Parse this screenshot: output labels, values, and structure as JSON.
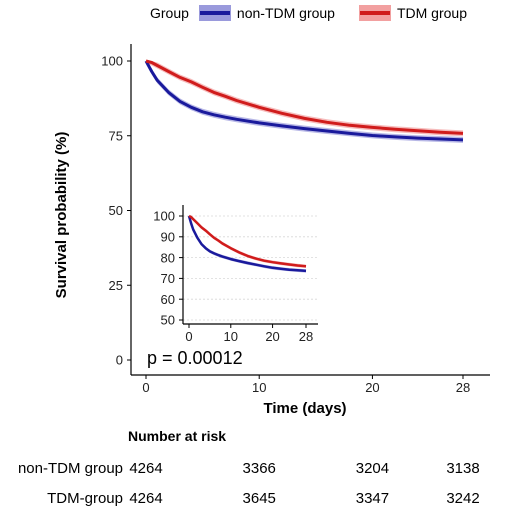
{
  "legend": {
    "title": "Group",
    "items": [
      {
        "label": "non-TDM group",
        "color": "#1a1a9c",
        "band_color": "#9a9adc"
      },
      {
        "label": "TDM group",
        "color": "#d01c1c",
        "band_color": "#f2a0a0"
      }
    ]
  },
  "chart_data": [
    {
      "type": "line",
      "xlabel": "Time (days)",
      "ylabel": "Survival probability (%)",
      "xlim": [
        0,
        28
      ],
      "ylim": [
        0,
        100
      ],
      "xticks": [
        0,
        10,
        20,
        28
      ],
      "yticks": [
        0,
        25,
        50,
        75,
        100
      ],
      "annotation": "p = 0.00012",
      "grid": false,
      "series": [
        {
          "name": "non-TDM group",
          "color": "#1a1a9c",
          "x": [
            0,
            0.5,
            1,
            2,
            3,
            4,
            5,
            6,
            7,
            8,
            10,
            12,
            14,
            16,
            18,
            20,
            22,
            24,
            26,
            28
          ],
          "y": [
            100,
            96.5,
            93.5,
            89.5,
            86.5,
            84.5,
            83,
            82,
            81.2,
            80.5,
            79.3,
            78.3,
            77.4,
            76.6,
            75.8,
            75.1,
            74.6,
            74.2,
            73.9,
            73.6
          ]
        },
        {
          "name": "TDM group",
          "color": "#d01c1c",
          "x": [
            0,
            0.5,
            1,
            2,
            3,
            4,
            5,
            6,
            7,
            8,
            10,
            12,
            14,
            16,
            18,
            20,
            22,
            24,
            26,
            28
          ],
          "y": [
            100,
            99.5,
            98.5,
            96.5,
            94.5,
            93,
            91.2,
            89.5,
            88.2,
            86.8,
            84.5,
            82.5,
            80.8,
            79.5,
            78.5,
            77.8,
            77.2,
            76.7,
            76.2,
            75.8
          ]
        }
      ]
    },
    {
      "type": "line",
      "inset": true,
      "xlim": [
        0,
        28
      ],
      "ylim": [
        50,
        100
      ],
      "xticks": [
        0,
        10,
        20,
        28
      ],
      "yticks": [
        50,
        60,
        70,
        80,
        90,
        100
      ],
      "grid": true,
      "series": [
        {
          "name": "non-TDM group",
          "color": "#1a1a9c",
          "x": [
            0,
            0.5,
            1,
            2,
            3,
            4,
            5,
            6,
            7,
            8,
            10,
            12,
            14,
            16,
            18,
            20,
            22,
            24,
            26,
            28
          ],
          "y": [
            100,
            96.5,
            93.5,
            89.5,
            86.5,
            84.5,
            83,
            82,
            81.2,
            80.5,
            79.3,
            78.3,
            77.4,
            76.6,
            75.8,
            75.1,
            74.6,
            74.2,
            73.9,
            73.6
          ]
        },
        {
          "name": "TDM group",
          "color": "#d01c1c",
          "x": [
            0,
            0.5,
            1,
            2,
            3,
            4,
            5,
            6,
            7,
            8,
            10,
            12,
            14,
            16,
            18,
            20,
            22,
            24,
            26,
            28
          ],
          "y": [
            100,
            99.5,
            98.5,
            96.5,
            94.5,
            93,
            91.2,
            89.5,
            88.2,
            86.8,
            84.5,
            82.5,
            80.8,
            79.5,
            78.5,
            77.8,
            77.2,
            76.7,
            76.2,
            75.8
          ]
        }
      ]
    }
  ],
  "risk_table": {
    "title": "Number at risk",
    "times": [
      0,
      10,
      20,
      28
    ],
    "rows": [
      {
        "label": "non-TDM group",
        "values": [
          "4264",
          "3366",
          "3204",
          "3138"
        ]
      },
      {
        "label": "TDM-group",
        "values": [
          "4264",
          "3645",
          "3347",
          "3242"
        ]
      }
    ]
  }
}
